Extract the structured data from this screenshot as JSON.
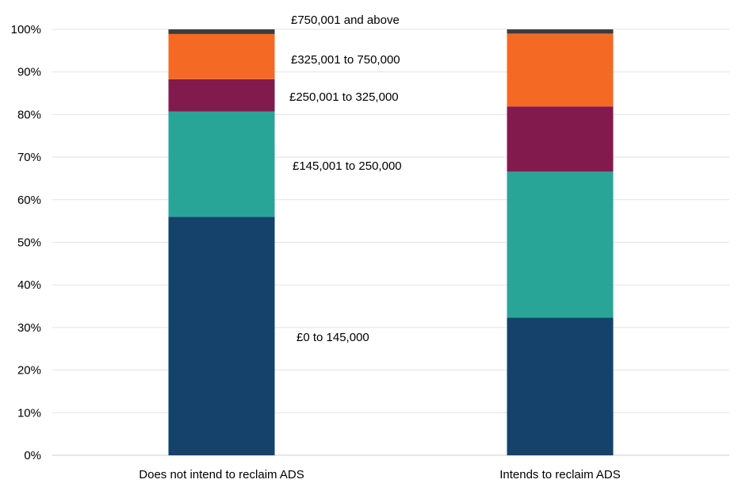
{
  "chart_data": {
    "type": "bar",
    "stacked": true,
    "percent_axis": true,
    "title": "",
    "xlabel": "",
    "ylabel": "",
    "ylim": [
      0,
      100
    ],
    "grid": true,
    "categories": [
      "Does not intend to reclaim ADS",
      "Intends to reclaim ADS"
    ],
    "y_ticks": [
      "0%",
      "10%",
      "20%",
      "30%",
      "40%",
      "50%",
      "60%",
      "70%",
      "80%",
      "90%",
      "100%"
    ],
    "series": [
      {
        "name": "£0 to 145,000",
        "color": "#14426b",
        "values": [
          56,
          32.3
        ]
      },
      {
        "name": "£145,001 to 250,000",
        "color": "#29a598",
        "values": [
          24.7,
          34.3
        ]
      },
      {
        "name": "£250,001 to 325,000",
        "color": "#821a4d",
        "values": [
          7.6,
          15.3
        ]
      },
      {
        "name": "£325,001 to 750,000",
        "color": "#f46a25",
        "values": [
          10.6,
          17.1
        ]
      },
      {
        "name": "£750,001 and above",
        "color": "#3c3c3c",
        "values": [
          1.1,
          1.0
        ]
      }
    ]
  }
}
